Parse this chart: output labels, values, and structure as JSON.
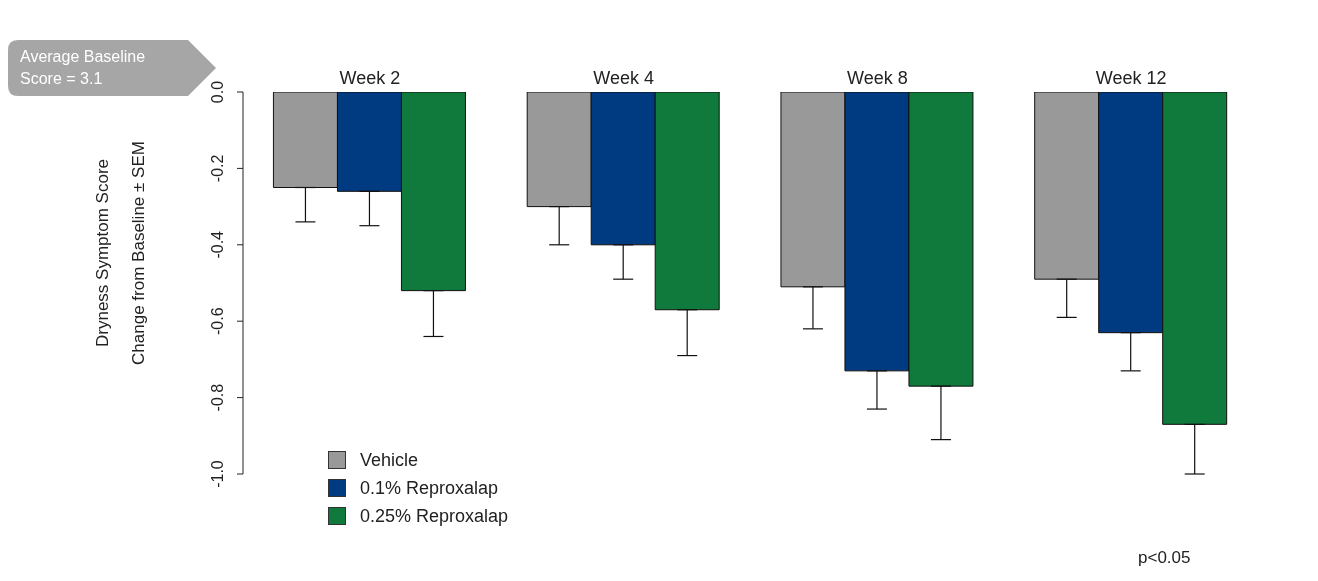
{
  "chart_data": {
    "type": "bar",
    "ylabel": "Dryness Symptom Score\nChange from Baseline  ±  SEM",
    "categories": [
      "Week 2",
      "Week 4",
      "Week 8",
      "Week 12"
    ],
    "series": [
      {
        "name": "Vehicle",
        "color": "#999999",
        "values": [
          -0.25,
          -0.3,
          -0.51,
          -0.49
        ],
        "errors": [
          [
            -0.34,
            -0.25
          ],
          [
            -0.4,
            -0.3
          ],
          [
            -0.62,
            -0.51
          ],
          [
            -0.59,
            -0.49
          ]
        ]
      },
      {
        "name": "0.1% Reproxalap",
        "color": "#003a80",
        "values": [
          -0.26,
          -0.4,
          -0.73,
          -0.63
        ],
        "errors": [
          [
            -0.35,
            -0.26
          ],
          [
            -0.49,
            -0.4
          ],
          [
            -0.83,
            -0.73
          ],
          [
            -0.73,
            -0.63
          ]
        ]
      },
      {
        "name": "0.25% Reproxalap",
        "color": "#0f7a3c",
        "values": [
          -0.52,
          -0.57,
          -0.77,
          -0.87
        ],
        "errors": [
          [
            -0.64,
            -0.52
          ],
          [
            -0.69,
            -0.57
          ],
          [
            -0.91,
            -0.77
          ],
          [
            -1.0,
            -0.87
          ]
        ]
      }
    ],
    "ylim": [
      -1,
      0
    ],
    "yticks": [
      {
        "value": 0,
        "label": "0.0"
      },
      -0.2,
      -0.4,
      -0.6,
      -0.8,
      {
        "value": -1,
        "label": "-1.0"
      }
    ],
    "grid": false,
    "legend": "bottom left",
    "annotations": [
      "Average Baseline Score = 3.1",
      "p<0.05"
    ]
  }
}
